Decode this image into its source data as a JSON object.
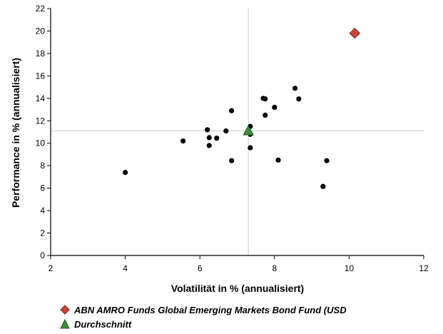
{
  "chart_data": {
    "type": "scatter",
    "xlabel": "Volatilität in % (annualisiert)",
    "ylabel": "Performance in % (annualisiert)",
    "xlim": [
      2,
      12
    ],
    "ylim": [
      0,
      22
    ],
    "x_ticks": [
      2,
      4,
      6,
      8,
      10,
      12
    ],
    "y_ticks": [
      0,
      2,
      4,
      6,
      8,
      10,
      12,
      14,
      16,
      18,
      20,
      22
    ],
    "grid": false,
    "reference_lines": {
      "x": 7.3,
      "y": 11.1
    },
    "legend_position": "bottom",
    "series": [
      {
        "name": "",
        "marker": "circle",
        "color": "#000000",
        "points": [
          {
            "x": 4.0,
            "y": 7.4
          },
          {
            "x": 5.55,
            "y": 10.2
          },
          {
            "x": 6.2,
            "y": 11.2
          },
          {
            "x": 6.25,
            "y": 10.5
          },
          {
            "x": 6.25,
            "y": 9.8
          },
          {
            "x": 6.45,
            "y": 10.45
          },
          {
            "x": 6.7,
            "y": 11.1
          },
          {
            "x": 6.85,
            "y": 12.9
          },
          {
            "x": 6.85,
            "y": 8.45
          },
          {
            "x": 7.35,
            "y": 11.5
          },
          {
            "x": 7.35,
            "y": 10.8
          },
          {
            "x": 7.35,
            "y": 9.6
          },
          {
            "x": 7.7,
            "y": 14.0
          },
          {
            "x": 7.75,
            "y": 13.95
          },
          {
            "x": 7.75,
            "y": 12.5
          },
          {
            "x": 8.0,
            "y": 13.2
          },
          {
            "x": 8.1,
            "y": 8.5
          },
          {
            "x": 8.55,
            "y": 14.9
          },
          {
            "x": 8.65,
            "y": 13.95
          },
          {
            "x": 9.3,
            "y": 6.15
          },
          {
            "x": 9.4,
            "y": 8.45
          }
        ]
      },
      {
        "name": "ABN AMRO Funds Global Emerging Markets Bond Fund (USD",
        "marker": "diamond",
        "color": "#c8463c",
        "points": [
          {
            "x": 10.15,
            "y": 19.8
          }
        ]
      },
      {
        "name": "Durchschnitt",
        "marker": "triangle",
        "color": "#3c8c3c",
        "points": [
          {
            "x": 7.3,
            "y": 11.1
          }
        ]
      }
    ]
  }
}
